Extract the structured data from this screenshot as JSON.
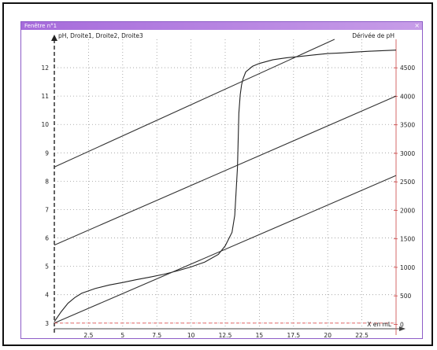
{
  "window": {
    "title": "Fenêtre n°1",
    "close_glyph": "×"
  },
  "colors": {
    "accent": "#a66bdb",
    "derivative": "#e05050",
    "curve": "#222222"
  },
  "chart_data": {
    "type": "line",
    "title": "",
    "left_axis_label": "pH, Droite1, Droite2, Droite3",
    "right_axis_label": "Dérivée de pH",
    "xlabel": "X en mL",
    "x_ticks": [
      "2.5",
      "5",
      "7.5",
      "10",
      "12.5",
      "15",
      "17.5",
      "20",
      "22.5"
    ],
    "y_ticks": [
      "3",
      "4",
      "5",
      "6",
      "7",
      "8",
      "9",
      "10",
      "11",
      "12"
    ],
    "y2_ticks": [
      "0",
      "500",
      "1000",
      "1500",
      "2000",
      "2500",
      "3000",
      "3500",
      "4000",
      "4500"
    ],
    "xlim": [
      0,
      25
    ],
    "ylim": [
      2.8,
      13
    ],
    "y2lim": [
      -0.2,
      13
    ],
    "grid": true,
    "series": [
      {
        "name": "pH",
        "x": [
          0,
          0.5,
          1,
          1.5,
          2,
          3,
          4,
          5,
          6,
          7,
          8,
          9,
          10,
          11,
          12,
          12.5,
          13,
          13.2,
          13.4,
          13.5,
          13.6,
          13.7,
          13.8,
          14,
          14.5,
          15,
          16,
          17,
          18,
          19,
          20,
          21,
          22,
          23,
          24,
          25
        ],
        "y": [
          3.05,
          3.4,
          3.7,
          3.9,
          4.05,
          4.22,
          4.34,
          4.43,
          4.53,
          4.62,
          4.72,
          4.84,
          4.98,
          5.15,
          5.42,
          5.72,
          6.2,
          6.8,
          8.5,
          10.4,
          11.05,
          11.4,
          11.6,
          11.85,
          12.05,
          12.15,
          12.28,
          12.35,
          12.4,
          12.45,
          12.5,
          12.52,
          12.55,
          12.58,
          12.6,
          12.62
        ]
      },
      {
        "name": "Droite1",
        "x": [
          0,
          20.5
        ],
        "y": [
          8.5,
          13.0
        ]
      },
      {
        "name": "Droite2",
        "x": [
          0,
          25
        ],
        "y": [
          5.75,
          11.0
        ]
      },
      {
        "name": "Droite3",
        "x": [
          0,
          25
        ],
        "y": [
          3.0,
          8.2
        ]
      },
      {
        "name": "Dérivée de pH",
        "x": [
          0,
          25
        ],
        "y": [
          3.0,
          3.0
        ]
      }
    ]
  }
}
